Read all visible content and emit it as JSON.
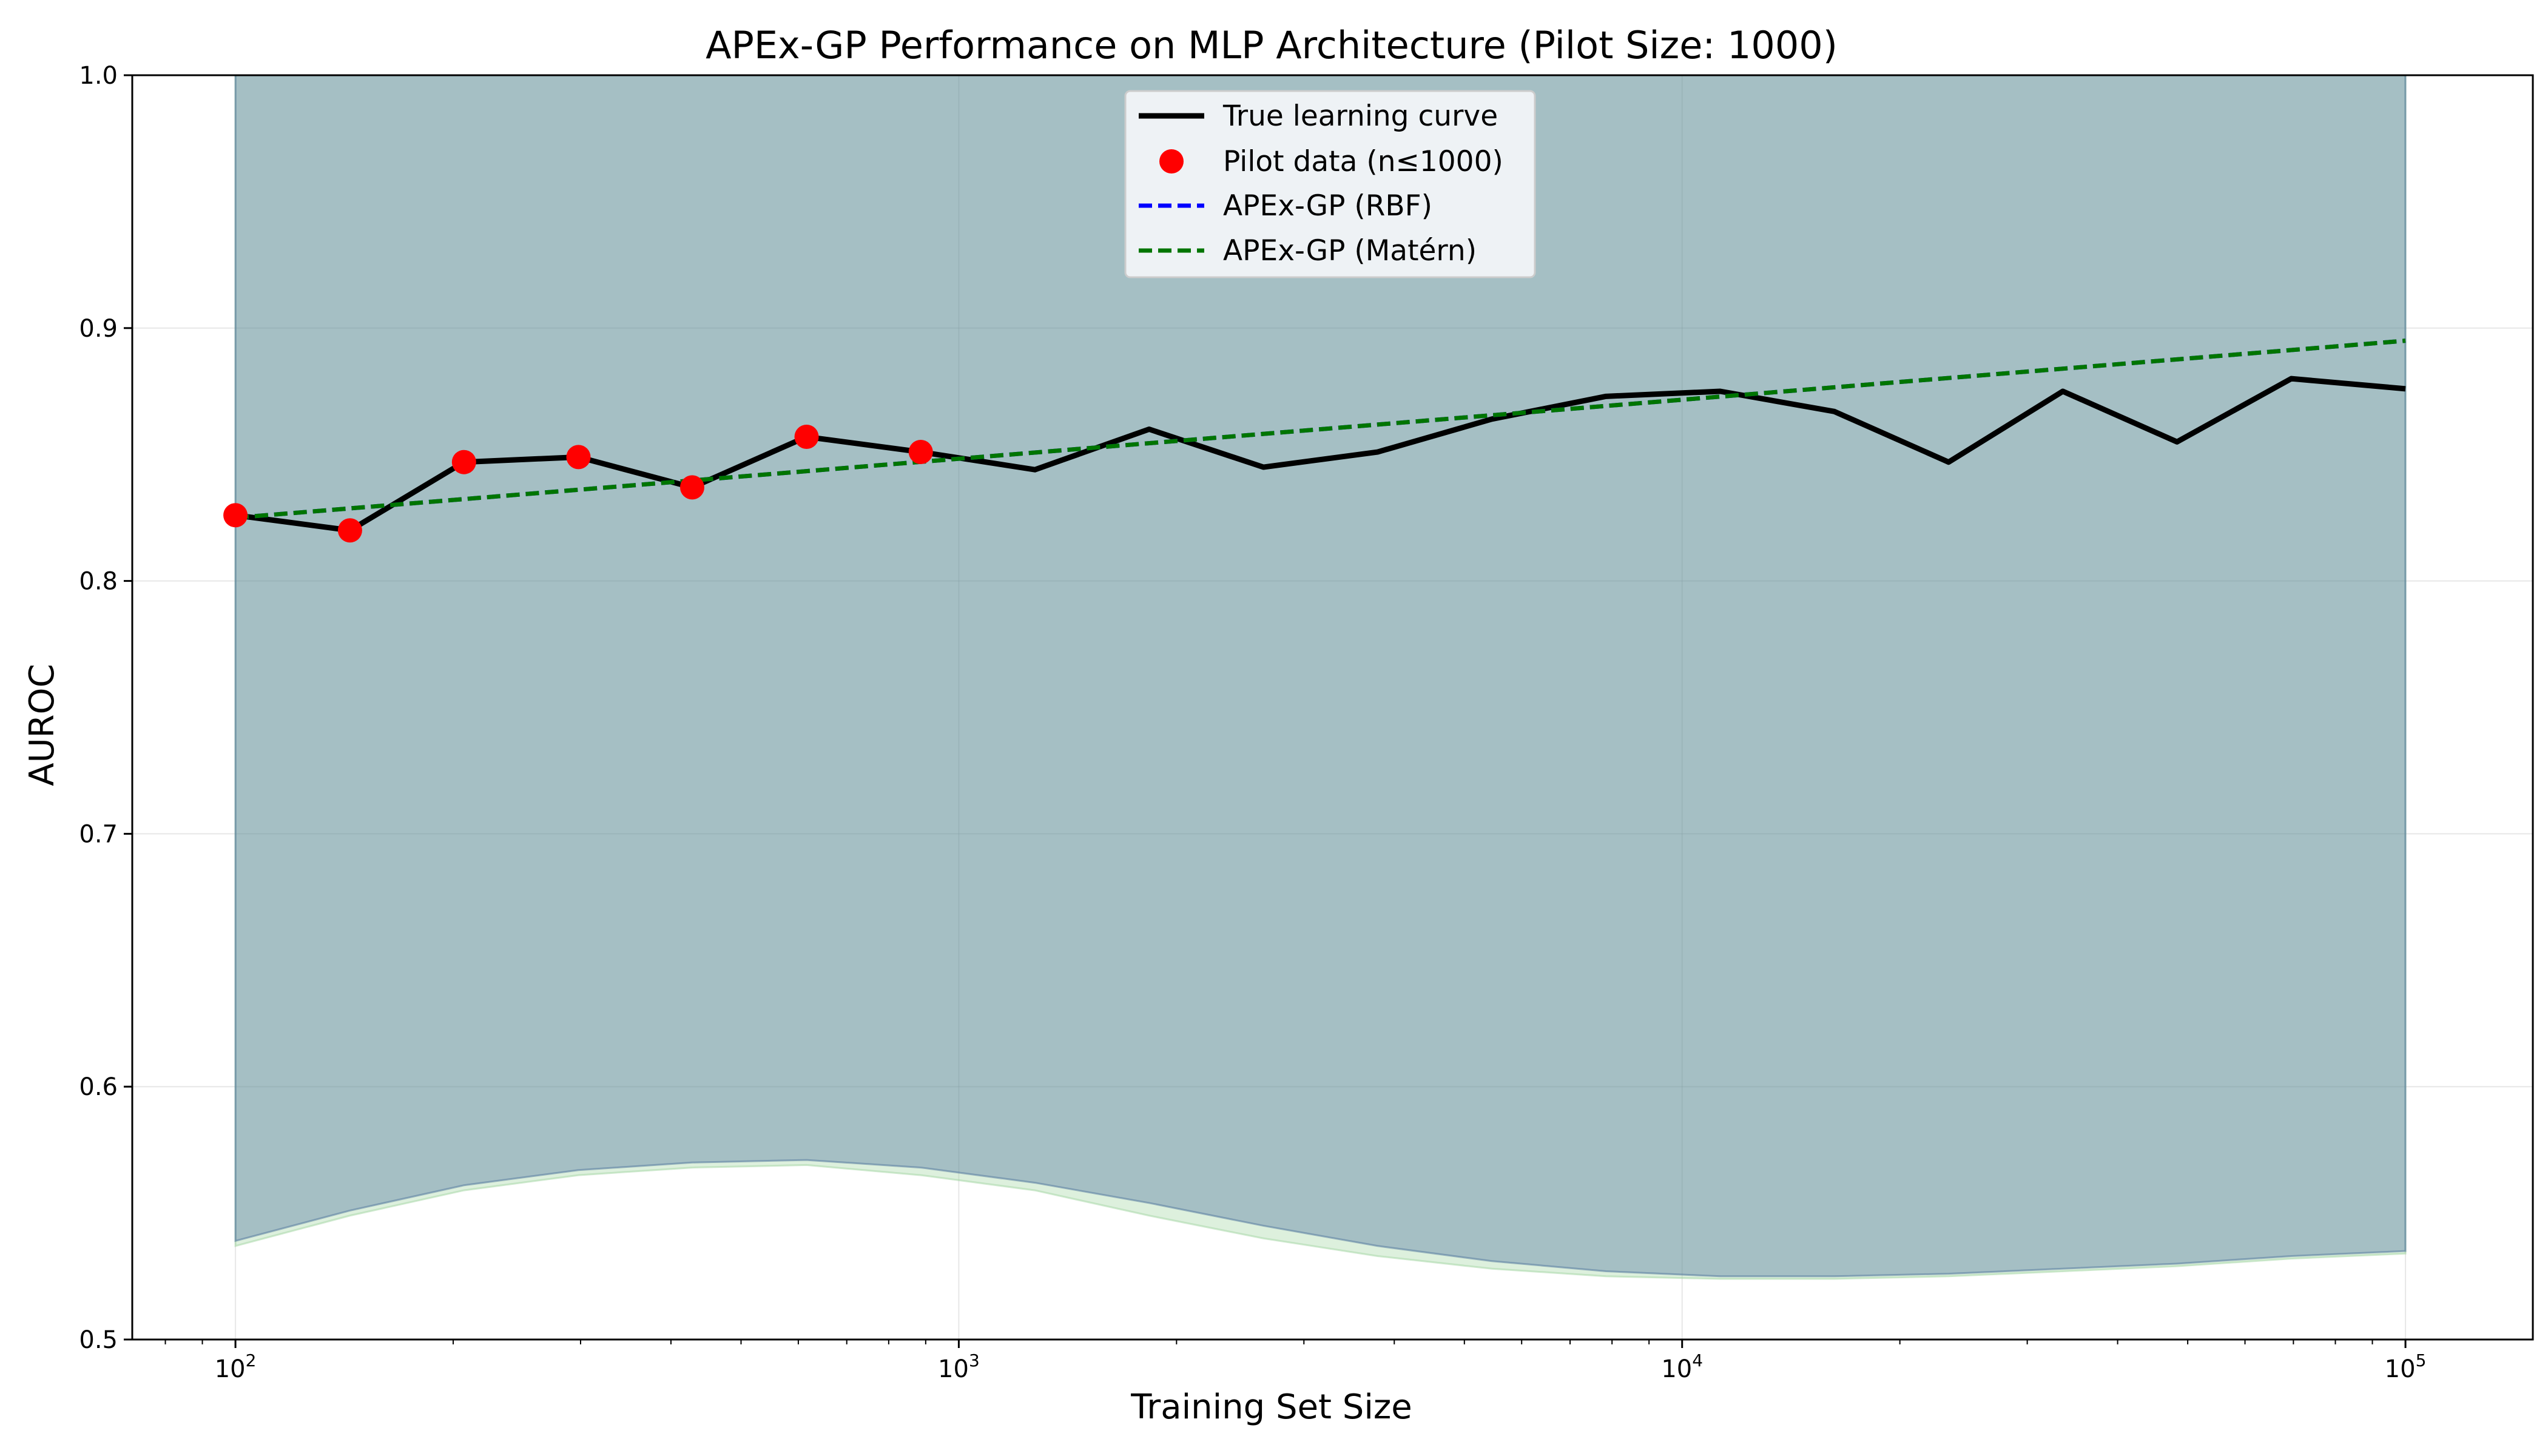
{
  "chart_data": {
    "type": "line",
    "title": "APEx-GP Performance on MLP Architecture (Pilot Size: 1000)",
    "xlabel": "Training Set Size",
    "ylabel": "AUROC",
    "xscale": "log",
    "xlim": [
      72,
      150000
    ],
    "ylim": [
      0.5,
      1.0
    ],
    "grid": true,
    "legend_position": "top-center",
    "x_ticks": [
      {
        "value": 100,
        "base": "10",
        "exp": "2"
      },
      {
        "value": 1000,
        "base": "10",
        "exp": "3"
      },
      {
        "value": 10000,
        "base": "10",
        "exp": "4"
      },
      {
        "value": 100000,
        "base": "10",
        "exp": "5"
      }
    ],
    "y_ticks": [
      "0.5",
      "0.6",
      "0.7",
      "0.8",
      "0.9",
      "1.0"
    ],
    "series": [
      {
        "name": "True learning curve",
        "kind": "line",
        "color": "#000000",
        "x": [
          100,
          144,
          207,
          298,
          428,
          616,
          886,
          1274,
          1833,
          2637,
          3793,
          5456,
          7848,
          11288,
          16238,
          23357,
          33598,
          48329,
          69519,
          100000
        ],
        "y": [
          0.826,
          0.82,
          0.847,
          0.849,
          0.837,
          0.857,
          0.851,
          0.844,
          0.86,
          0.845,
          0.851,
          0.864,
          0.873,
          0.875,
          0.867,
          0.847,
          0.875,
          0.855,
          0.88,
          0.876
        ]
      },
      {
        "name": "Pilot data (n≤1000)",
        "kind": "scatter",
        "color": "#ff0000",
        "x": [
          100,
          144,
          207,
          298,
          428,
          616,
          886
        ],
        "y": [
          0.826,
          0.82,
          0.847,
          0.849,
          0.837,
          0.857,
          0.851
        ]
      },
      {
        "name": "APEx-GP (RBF)",
        "kind": "dashed-line",
        "color": "#0000ff",
        "band_color": "#4a6f9a",
        "x": [
          100,
          100000
        ],
        "y": [
          0.825,
          0.895
        ],
        "band_upper": 1.0,
        "band_lower": [
          {
            "x": 100,
            "y": 0.539
          },
          {
            "x": 144,
            "y": 0.551
          },
          {
            "x": 207,
            "y": 0.561
          },
          {
            "x": 298,
            "y": 0.567
          },
          {
            "x": 428,
            "y": 0.57
          },
          {
            "x": 616,
            "y": 0.571
          },
          {
            "x": 886,
            "y": 0.568
          },
          {
            "x": 1274,
            "y": 0.562
          },
          {
            "x": 1833,
            "y": 0.554
          },
          {
            "x": 2637,
            "y": 0.545
          },
          {
            "x": 3793,
            "y": 0.537
          },
          {
            "x": 5456,
            "y": 0.531
          },
          {
            "x": 7848,
            "y": 0.527
          },
          {
            "x": 11288,
            "y": 0.525
          },
          {
            "x": 16238,
            "y": 0.525
          },
          {
            "x": 23357,
            "y": 0.526
          },
          {
            "x": 33598,
            "y": 0.528
          },
          {
            "x": 48329,
            "y": 0.53
          },
          {
            "x": 69519,
            "y": 0.533
          },
          {
            "x": 100000,
            "y": 0.535
          }
        ]
      },
      {
        "name": "APEx-GP (Matérn)",
        "kind": "dashed-line",
        "color": "#007500",
        "band_color": "#9fd49f",
        "x": [
          100,
          100000
        ],
        "y": [
          0.825,
          0.895
        ],
        "band_upper": 1.0,
        "band_lower": [
          {
            "x": 100,
            "y": 0.537
          },
          {
            "x": 144,
            "y": 0.549
          },
          {
            "x": 207,
            "y": 0.559
          },
          {
            "x": 298,
            "y": 0.565
          },
          {
            "x": 428,
            "y": 0.568
          },
          {
            "x": 616,
            "y": 0.569
          },
          {
            "x": 886,
            "y": 0.565
          },
          {
            "x": 1274,
            "y": 0.559
          },
          {
            "x": 1833,
            "y": 0.549
          },
          {
            "x": 2637,
            "y": 0.54
          },
          {
            "x": 3793,
            "y": 0.533
          },
          {
            "x": 5456,
            "y": 0.528
          },
          {
            "x": 7848,
            "y": 0.525
          },
          {
            "x": 11288,
            "y": 0.524
          },
          {
            "x": 16238,
            "y": 0.524
          },
          {
            "x": 23357,
            "y": 0.525
          },
          {
            "x": 33598,
            "y": 0.527
          },
          {
            "x": 48329,
            "y": 0.529
          },
          {
            "x": 69519,
            "y": 0.532
          },
          {
            "x": 100000,
            "y": 0.534
          }
        ]
      }
    ]
  }
}
